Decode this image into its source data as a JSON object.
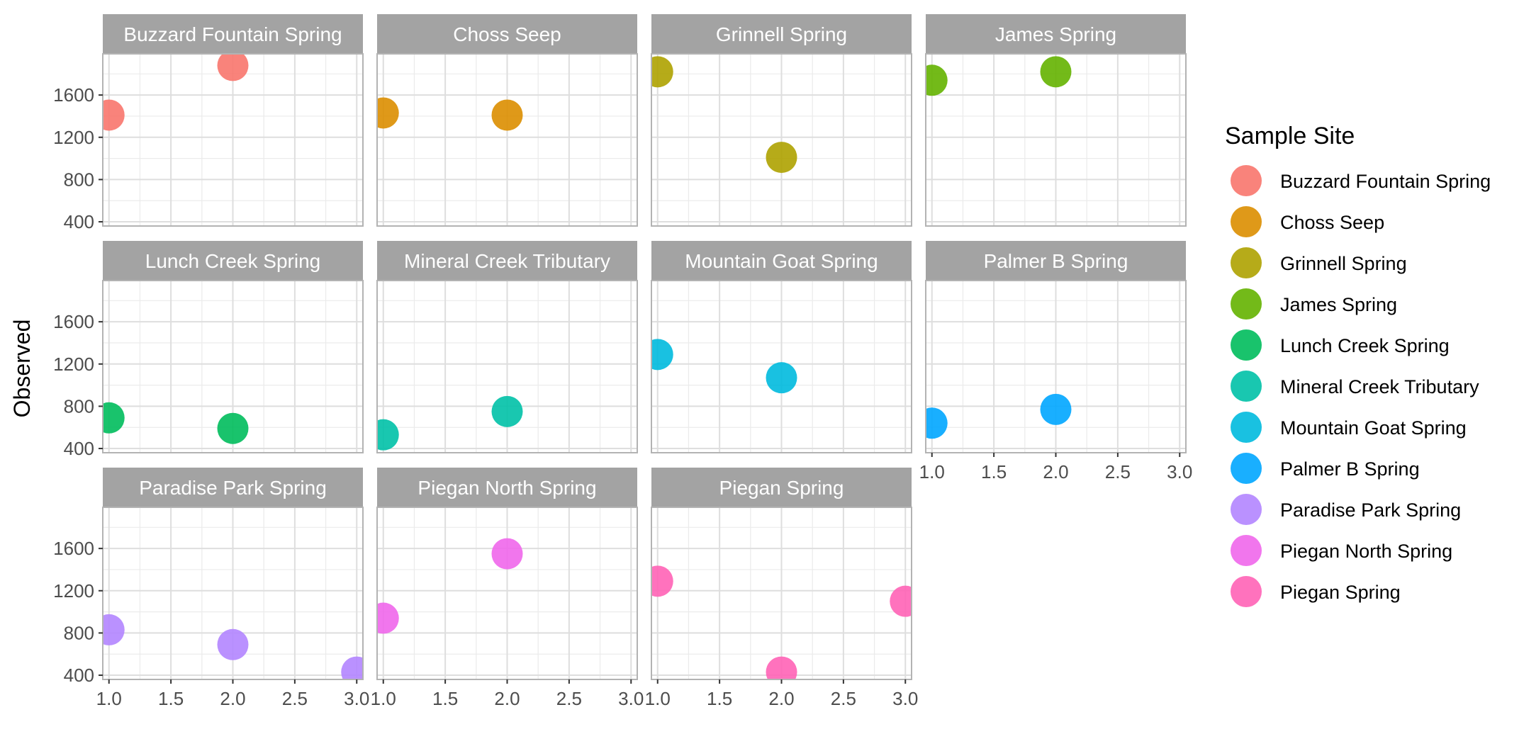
{
  "chart_data": {
    "type": "scatter",
    "title": "",
    "xlabel": "",
    "ylabel": "Observed",
    "xlim": [
      0.95,
      3.05
    ],
    "ylim": [
      360,
      1990
    ],
    "x_ticks": [
      "1.0",
      "1.5",
      "2.0",
      "2.5",
      "3.0"
    ],
    "x_tick_values": [
      1.0,
      1.5,
      2.0,
      2.5,
      3.0
    ],
    "y_ticks": [
      "400",
      "800",
      "1200",
      "1600"
    ],
    "y_tick_values": [
      400,
      800,
      1200,
      1600
    ],
    "grid": true,
    "legend_title": "Sample Site",
    "legend_position": "right",
    "facet_layout": {
      "columns": 4,
      "rows": 3
    },
    "series": [
      {
        "name": "Buzzard Fountain Spring",
        "color": "#F8766D",
        "points": [
          {
            "x": 1,
            "y": 1410
          },
          {
            "x": 2,
            "y": 1880
          }
        ]
      },
      {
        "name": "Choss Seep",
        "color": "#DB8E00",
        "points": [
          {
            "x": 1,
            "y": 1430
          },
          {
            "x": 2,
            "y": 1410
          }
        ]
      },
      {
        "name": "Grinnell Spring",
        "color": "#AEA200",
        "points": [
          {
            "x": 1,
            "y": 1820
          },
          {
            "x": 2,
            "y": 1010
          }
        ]
      },
      {
        "name": "James Spring",
        "color": "#64B200",
        "points": [
          {
            "x": 1,
            "y": 1740
          },
          {
            "x": 2,
            "y": 1820
          }
        ]
      },
      {
        "name": "Lunch Creek Spring",
        "color": "#00BD5C",
        "points": [
          {
            "x": 1,
            "y": 690
          },
          {
            "x": 2,
            "y": 590
          }
        ]
      },
      {
        "name": "Mineral Creek Tributary",
        "color": "#00C1A7",
        "points": [
          {
            "x": 1,
            "y": 530
          },
          {
            "x": 2,
            "y": 750
          }
        ]
      },
      {
        "name": "Mountain Goat Spring",
        "color": "#00BADE",
        "points": [
          {
            "x": 1,
            "y": 1290
          },
          {
            "x": 2,
            "y": 1070
          }
        ]
      },
      {
        "name": "Palmer B Spring",
        "color": "#00A6FF",
        "points": [
          {
            "x": 1,
            "y": 640
          },
          {
            "x": 2,
            "y": 770
          }
        ]
      },
      {
        "name": "Paradise Park Spring",
        "color": "#B385FF",
        "points": [
          {
            "x": 1,
            "y": 830
          },
          {
            "x": 2,
            "y": 690
          },
          {
            "x": 3,
            "y": 430
          }
        ]
      },
      {
        "name": "Piegan North Spring",
        "color": "#EF67EB",
        "points": [
          {
            "x": 1,
            "y": 940
          },
          {
            "x": 2,
            "y": 1550
          }
        ]
      },
      {
        "name": "Piegan Spring",
        "color": "#FF63B6",
        "points": [
          {
            "x": 1,
            "y": 1290
          },
          {
            "x": 2,
            "y": 430
          },
          {
            "x": 3,
            "y": 1100
          }
        ]
      }
    ]
  }
}
